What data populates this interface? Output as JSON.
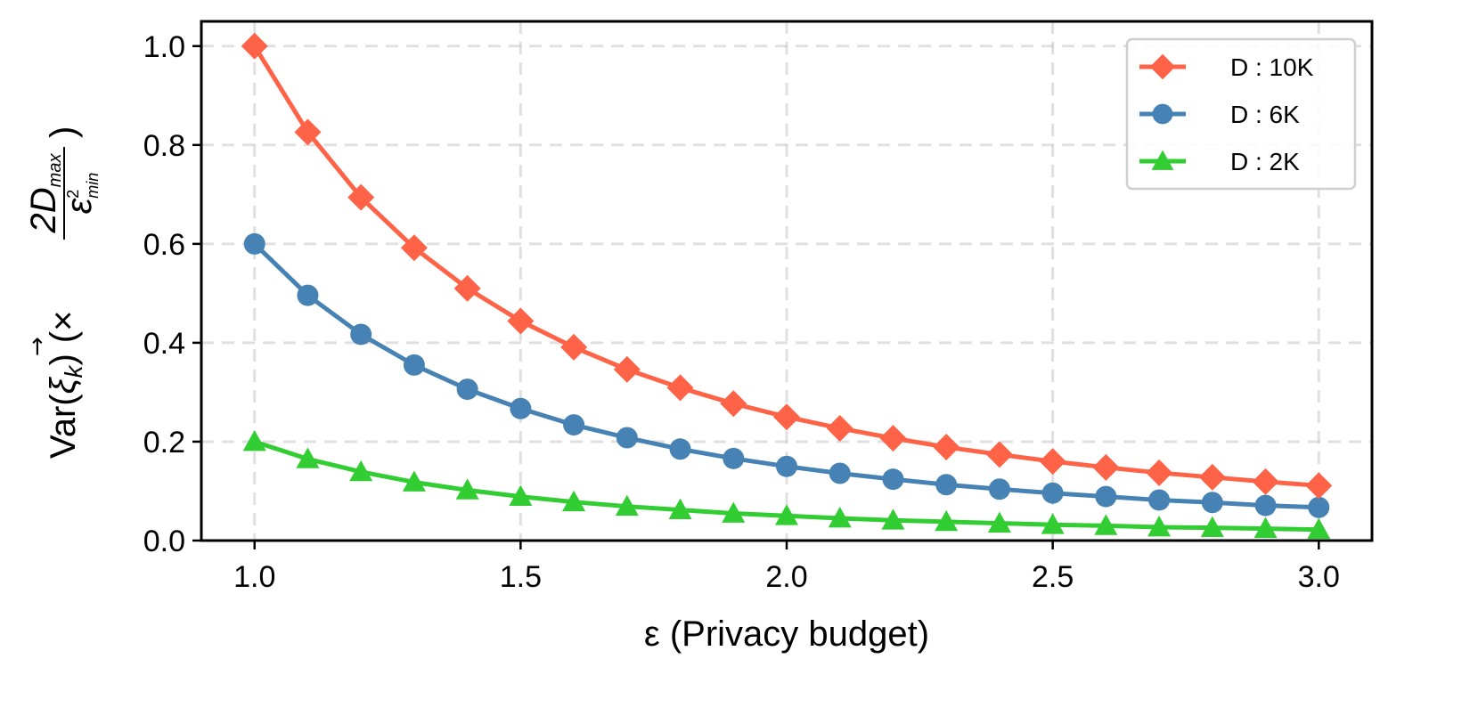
{
  "chart_data": {
    "type": "line",
    "xlabel": "ε (Privacy budget)",
    "ylabel": "Var(ξ⃗k) (× 2Dmax / ε²min)",
    "ylabel_parts": {
      "var": "Var(",
      "xi": "ξ",
      "sub_k": "k",
      "close": ")",
      "times": "(×",
      "numer": "2D",
      "numer_sub": "max",
      "denom": "ε",
      "denom_sup": "2",
      "denom_sub": "min",
      "rparen": ")"
    },
    "xlim": [
      0.9,
      3.1
    ],
    "ylim": [
      0.0,
      1.05
    ],
    "xticks": [
      1.0,
      1.5,
      2.0,
      2.5,
      3.0
    ],
    "xtick_labels": [
      "1.0",
      "1.5",
      "2.0",
      "2.5",
      "3.0"
    ],
    "yticks": [
      0.0,
      0.2,
      0.4,
      0.6,
      0.8,
      1.0
    ],
    "ytick_labels": [
      "0.0",
      "0.2",
      "0.4",
      "0.6",
      "0.8",
      "1.0"
    ],
    "grid": true,
    "legend_position": "top-right",
    "x": [
      1.0,
      1.1,
      1.2,
      1.3,
      1.4,
      1.5,
      1.6,
      1.7,
      1.8,
      1.9,
      2.0,
      2.1,
      2.2,
      2.3,
      2.4,
      2.5,
      2.6,
      2.7,
      2.8,
      2.9,
      3.0
    ],
    "series": [
      {
        "name": "D : 10K",
        "color": "#FF6347",
        "marker": "diamond",
        "values": [
          1.0,
          0.826,
          0.694,
          0.592,
          0.51,
          0.444,
          0.391,
          0.346,
          0.309,
          0.277,
          0.25,
          0.227,
          0.207,
          0.189,
          0.174,
          0.16,
          0.148,
          0.137,
          0.128,
          0.119,
          0.111
        ]
      },
      {
        "name": "D : 6K",
        "color": "#4682B4",
        "marker": "circle",
        "values": [
          0.6,
          0.496,
          0.417,
          0.355,
          0.306,
          0.267,
          0.234,
          0.208,
          0.185,
          0.166,
          0.15,
          0.136,
          0.124,
          0.113,
          0.104,
          0.096,
          0.089,
          0.082,
          0.077,
          0.071,
          0.067
        ]
      },
      {
        "name": "D : 2K",
        "color": "#32CD32",
        "marker": "triangle",
        "values": [
          0.2,
          0.165,
          0.139,
          0.118,
          0.102,
          0.089,
          0.078,
          0.069,
          0.062,
          0.055,
          0.05,
          0.045,
          0.041,
          0.038,
          0.035,
          0.032,
          0.03,
          0.027,
          0.026,
          0.024,
          0.022
        ]
      }
    ]
  }
}
